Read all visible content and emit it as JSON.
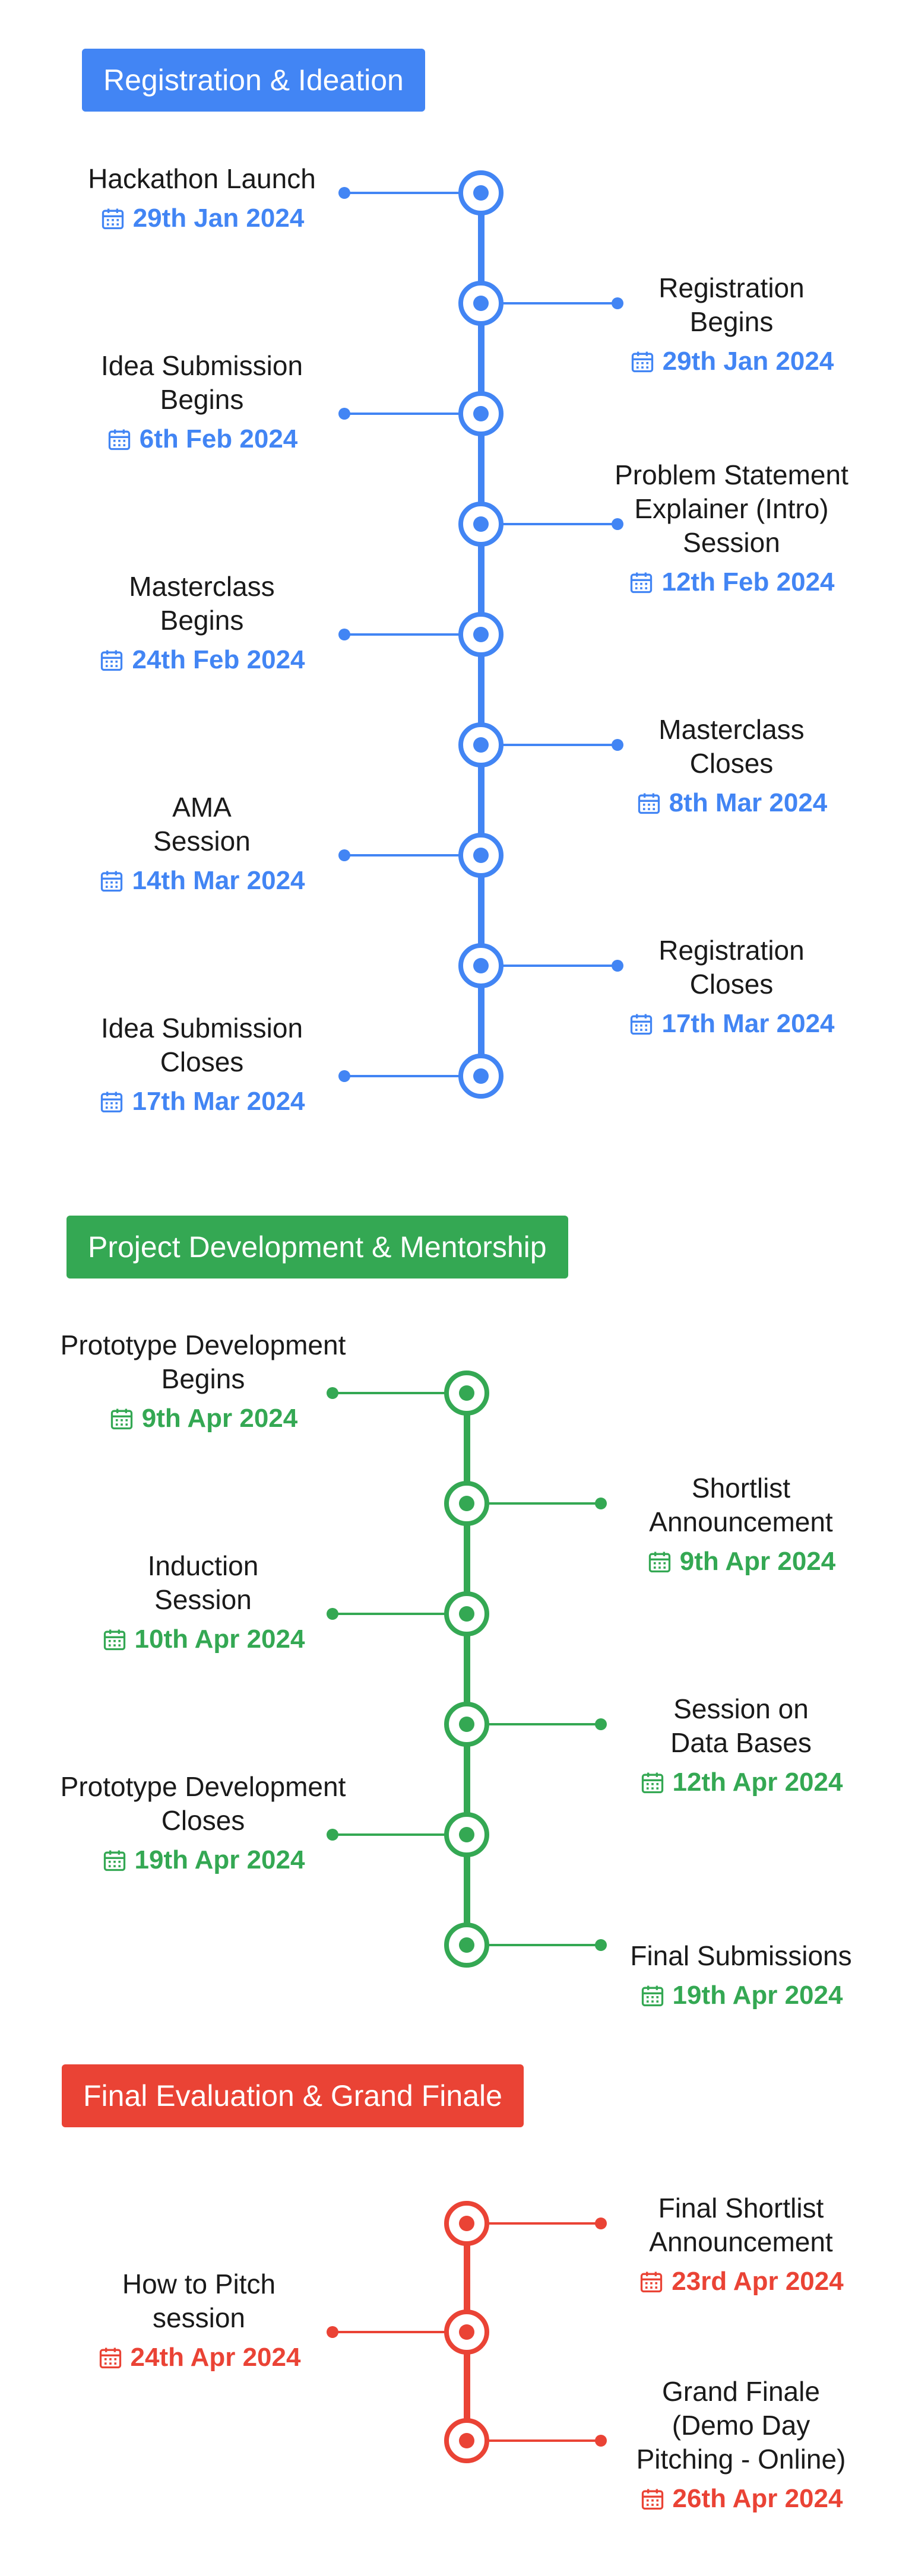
{
  "sections": [
    {
      "title": "Registration & Ideation",
      "color": "#4285F4",
      "events": [
        {
          "title": "Hackathon Launch",
          "date": "29th Jan 2024",
          "side": "left"
        },
        {
          "title": "Registration\nBegins",
          "date": "29th Jan 2024",
          "side": "right"
        },
        {
          "title": "Idea Submission\nBegins",
          "date": "6th Feb 2024",
          "side": "left"
        },
        {
          "title": "Problem Statement\nExplainer (Intro)\nSession",
          "date": "12th Feb 2024",
          "side": "right"
        },
        {
          "title": "Masterclass\nBegins",
          "date": "24th Feb 2024",
          "side": "left"
        },
        {
          "title": "Masterclass\nCloses",
          "date": "8th Mar 2024",
          "side": "right"
        },
        {
          "title": "AMA\nSession",
          "date": "14th Mar 2024",
          "side": "left"
        },
        {
          "title": "Registration\nCloses",
          "date": "17th Mar 2024",
          "side": "right"
        },
        {
          "title": "Idea Submission\nCloses",
          "date": "17th Mar 2024",
          "side": "left"
        }
      ]
    },
    {
      "title": "Project Development & Mentorship",
      "color": "#34A853",
      "events": [
        {
          "title": "Prototype Development\nBegins",
          "date": "9th Apr 2024",
          "side": "left"
        },
        {
          "title": "Shortlist\nAnnouncement",
          "date": "9th Apr 2024",
          "side": "right"
        },
        {
          "title": "Induction\nSession",
          "date": "10th Apr 2024",
          "side": "left"
        },
        {
          "title": "Session on\nData Bases",
          "date": "12th Apr 2024",
          "side": "right"
        },
        {
          "title": "Prototype Development\nCloses",
          "date": "19th Apr 2024",
          "side": "left"
        },
        {
          "title": "Final Submissions",
          "date": "19th Apr 2024",
          "side": "right"
        }
      ]
    },
    {
      "title": "Final Evaluation & Grand Finale",
      "color": "#EA4335",
      "events": [
        {
          "title": "Final Shortlist\nAnnouncement",
          "date": "23rd Apr 2024",
          "side": "right"
        },
        {
          "title": "How to Pitch\nsession",
          "date": "24th Apr 2024",
          "side": "left"
        },
        {
          "title": "Grand Finale\n(Demo Day\nPitching - Online)",
          "date": "26th Apr 2024",
          "side": "right"
        }
      ]
    }
  ],
  "icons": {
    "date": "calendar-icon",
    "node": "timeline-node-icon"
  }
}
